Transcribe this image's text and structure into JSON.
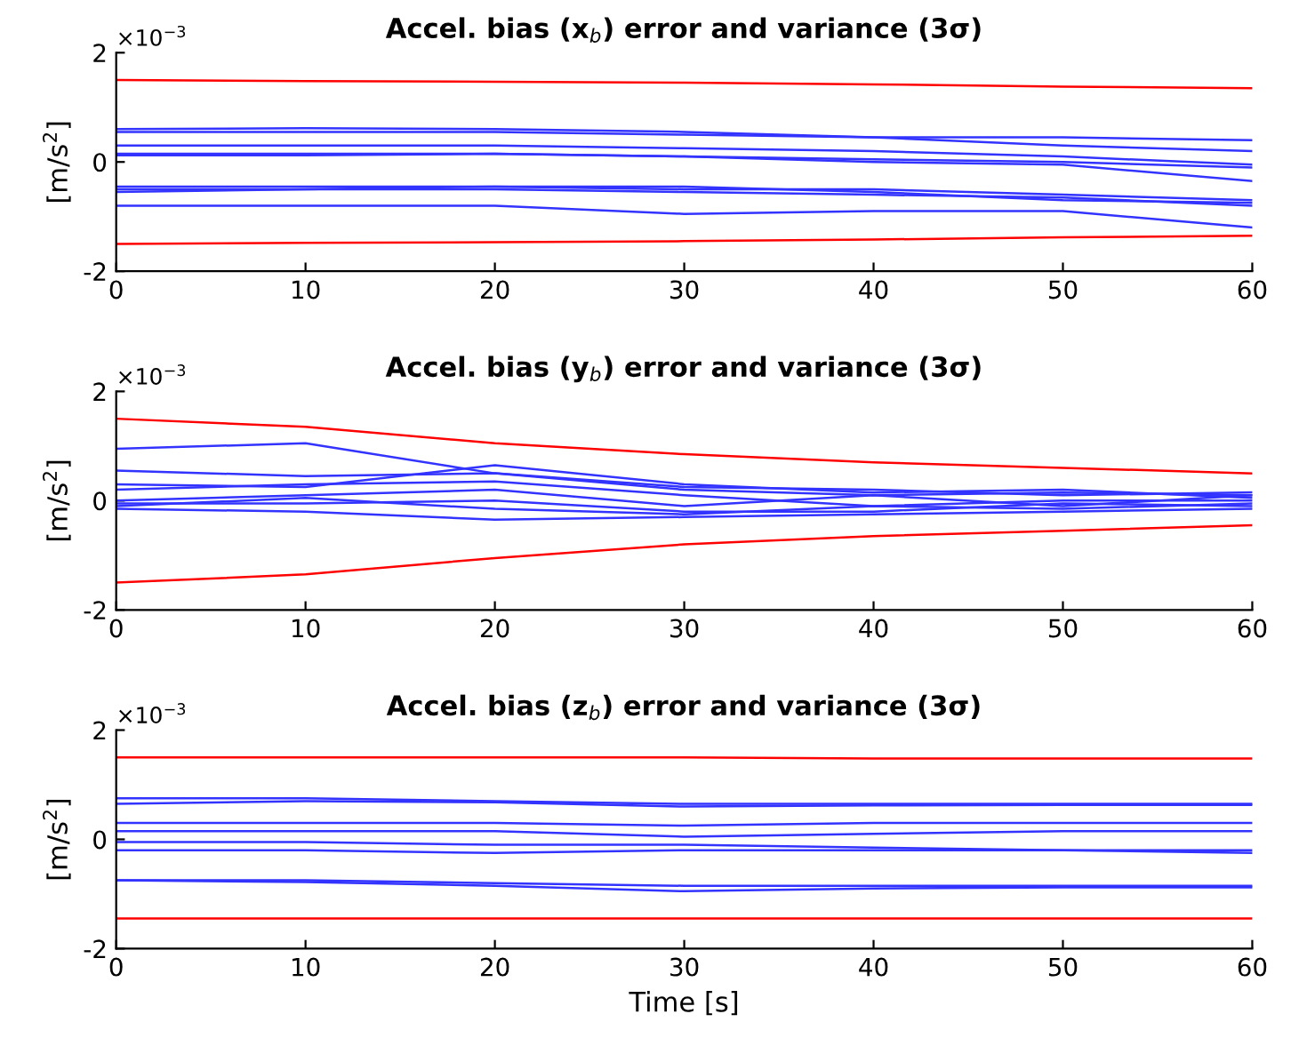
{
  "chart_data": [
    {
      "type": "line",
      "title": "Accel. bias (x$_{b}$) error and variance (3σ)",
      "ylabel": "[m/s$^{2}$]",
      "annotations": [
        "×10$^{−3}$"
      ],
      "x": [
        0,
        10,
        20,
        30,
        40,
        50,
        60
      ],
      "xlim": [
        0,
        60
      ],
      "xticks": [
        0,
        10,
        20,
        30,
        40,
        50,
        60
      ],
      "ylim": [
        -2,
        2
      ],
      "yticks": [
        -2,
        0,
        2
      ],
      "grid": false,
      "line_style": "solid",
      "series": [
        {
          "color": "#ff0000",
          "values": [
            1.5,
            1.48,
            1.47,
            1.45,
            1.42,
            1.38,
            1.35
          ]
        },
        {
          "color": "#ff0000",
          "values": [
            -1.5,
            -1.48,
            -1.47,
            -1.45,
            -1.42,
            -1.38,
            -1.35
          ]
        },
        {
          "color": "#3333ff",
          "values": [
            0.6,
            0.62,
            0.6,
            0.55,
            0.45,
            0.45,
            0.4
          ]
        },
        {
          "color": "#3333ff",
          "values": [
            0.55,
            0.55,
            0.55,
            0.5,
            0.45,
            0.3,
            0.2
          ]
        },
        {
          "color": "#3333ff",
          "values": [
            0.3,
            0.3,
            0.3,
            0.25,
            0.2,
            0.1,
            -0.05
          ]
        },
        {
          "color": "#3333ff",
          "values": [
            0.15,
            0.15,
            0.15,
            0.1,
            0.05,
            0.0,
            -0.1
          ]
        },
        {
          "color": "#3333ff",
          "values": [
            0.12,
            0.12,
            0.15,
            0.1,
            0.0,
            -0.05,
            -0.35
          ]
        },
        {
          "color": "#3333ff",
          "values": [
            -0.45,
            -0.45,
            -0.45,
            -0.5,
            -0.5,
            -0.6,
            -0.7
          ]
        },
        {
          "color": "#3333ff",
          "values": [
            -0.5,
            -0.5,
            -0.45,
            -0.45,
            -0.55,
            -0.7,
            -0.75
          ]
        },
        {
          "color": "#3333ff",
          "values": [
            -0.55,
            -0.5,
            -0.5,
            -0.55,
            -0.6,
            -0.65,
            -0.8
          ]
        },
        {
          "color": "#3333ff",
          "values": [
            -0.8,
            -0.8,
            -0.8,
            -0.95,
            -0.9,
            -0.9,
            -1.2
          ]
        }
      ]
    },
    {
      "type": "line",
      "title": "Accel. bias (y$_{b}$) error and variance (3σ)",
      "ylabel": "[m/s$^{2}$]",
      "annotations": [
        "×10$^{−3}$"
      ],
      "x": [
        0,
        10,
        20,
        30,
        40,
        50,
        60
      ],
      "xlim": [
        0,
        60
      ],
      "xticks": [
        0,
        10,
        20,
        30,
        40,
        50,
        60
      ],
      "ylim": [
        -2,
        2
      ],
      "yticks": [
        -2,
        0,
        2
      ],
      "grid": false,
      "line_style": "solid",
      "series": [
        {
          "color": "#ff0000",
          "values": [
            1.5,
            1.35,
            1.05,
            0.85,
            0.7,
            0.6,
            0.5
          ]
        },
        {
          "color": "#ff0000",
          "values": [
            -1.5,
            -1.35,
            -1.05,
            -0.8,
            -0.65,
            -0.55,
            -0.45
          ]
        },
        {
          "color": "#3333ff",
          "values": [
            0.95,
            1.05,
            0.5,
            0.2,
            0.1,
            0.15,
            0.1
          ]
        },
        {
          "color": "#3333ff",
          "values": [
            0.55,
            0.45,
            0.5,
            0.25,
            0.2,
            0.1,
            0.15
          ]
        },
        {
          "color": "#3333ff",
          "values": [
            0.3,
            0.25,
            0.65,
            0.3,
            0.15,
            0.2,
            0.05
          ]
        },
        {
          "color": "#3333ff",
          "values": [
            0.2,
            0.3,
            0.35,
            0.1,
            -0.1,
            0.0,
            0.0
          ]
        },
        {
          "color": "#3333ff",
          "values": [
            0.0,
            0.1,
            0.2,
            -0.1,
            0.1,
            -0.1,
            0.1
          ]
        },
        {
          "color": "#3333ff",
          "values": [
            -0.05,
            -0.05,
            0.0,
            -0.2,
            -0.2,
            -0.05,
            -0.1
          ]
        },
        {
          "color": "#3333ff",
          "values": [
            -0.15,
            -0.2,
            -0.35,
            -0.3,
            -0.25,
            -0.2,
            -0.15
          ]
        },
        {
          "color": "#3333ff",
          "values": [
            -0.1,
            0.05,
            -0.15,
            -0.25,
            -0.1,
            -0.15,
            -0.05
          ]
        }
      ]
    },
    {
      "type": "line",
      "title": "Accel. bias (z$_{b}$) error and variance (3σ)",
      "xlabel": "Time [s]",
      "ylabel": "[m/s$^{2}$]",
      "annotations": [
        "×10$^{−3}$"
      ],
      "x": [
        0,
        10,
        20,
        30,
        40,
        50,
        60
      ],
      "xlim": [
        0,
        60
      ],
      "xticks": [
        0,
        10,
        20,
        30,
        40,
        50,
        60
      ],
      "ylim": [
        -2,
        2
      ],
      "yticks": [
        -2,
        0,
        2
      ],
      "grid": false,
      "line_style": "solid",
      "series": [
        {
          "color": "#ff0000",
          "values": [
            1.5,
            1.5,
            1.5,
            1.5,
            1.48,
            1.48,
            1.48
          ]
        },
        {
          "color": "#ff0000",
          "values": [
            -1.45,
            -1.45,
            -1.45,
            -1.45,
            -1.45,
            -1.45,
            -1.45
          ]
        },
        {
          "color": "#3333ff",
          "values": [
            0.75,
            0.75,
            0.7,
            0.65,
            0.65,
            0.65,
            0.65
          ]
        },
        {
          "color": "#3333ff",
          "values": [
            0.65,
            0.7,
            0.68,
            0.6,
            0.62,
            0.63,
            0.63
          ]
        },
        {
          "color": "#3333ff",
          "values": [
            0.3,
            0.3,
            0.3,
            0.25,
            0.3,
            0.3,
            0.3
          ]
        },
        {
          "color": "#3333ff",
          "values": [
            0.15,
            0.15,
            0.15,
            0.05,
            0.1,
            0.15,
            0.15
          ]
        },
        {
          "color": "#3333ff",
          "values": [
            -0.05,
            -0.05,
            -0.1,
            -0.1,
            -0.15,
            -0.2,
            -0.2
          ]
        },
        {
          "color": "#3333ff",
          "values": [
            -0.2,
            -0.2,
            -0.25,
            -0.2,
            -0.2,
            -0.2,
            -0.25
          ]
        },
        {
          "color": "#3333ff",
          "values": [
            -0.75,
            -0.75,
            -0.8,
            -0.85,
            -0.85,
            -0.85,
            -0.85
          ]
        },
        {
          "color": "#3333ff",
          "values": [
            -0.75,
            -0.78,
            -0.85,
            -0.95,
            -0.9,
            -0.88,
            -0.88
          ]
        }
      ]
    }
  ]
}
